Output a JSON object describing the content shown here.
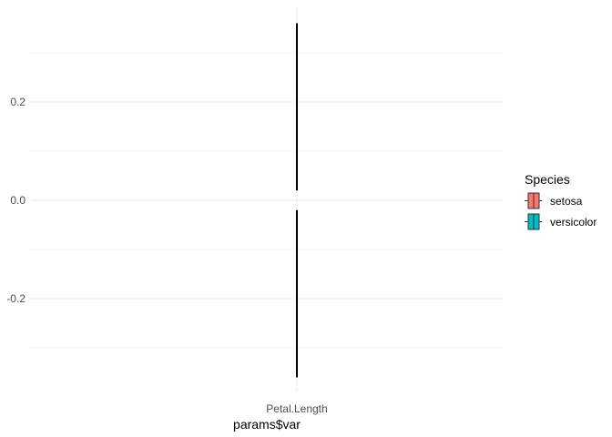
{
  "chart_data": {
    "type": "boxplot",
    "xlabel": "params$var",
    "ylabel": "",
    "categories": [
      "Petal.Length"
    ],
    "ylim": [
      -0.36,
      0.36
    ],
    "y_ticks": [
      -0.2,
      0.0,
      0.2
    ],
    "y_tick_labels": [
      "-0.2",
      "0.0",
      "0.2"
    ],
    "grid": true,
    "legend": {
      "title": "Species",
      "position": "right",
      "entries": [
        {
          "label": "setosa",
          "color": "#F8766D"
        },
        {
          "label": "versicolor",
          "color": "#00BFC4"
        }
      ]
    },
    "series": [
      {
        "name": "setosa",
        "category": "Petal.Length",
        "lower": -0.36,
        "upper": -0.02
      },
      {
        "name": "versicolor",
        "category": "Petal.Length",
        "lower": 0.02,
        "upper": 0.36
      }
    ],
    "colors": {
      "grid": "#ebebeb",
      "whisker": "#000000",
      "tick_text": "#4d4d4d"
    }
  }
}
